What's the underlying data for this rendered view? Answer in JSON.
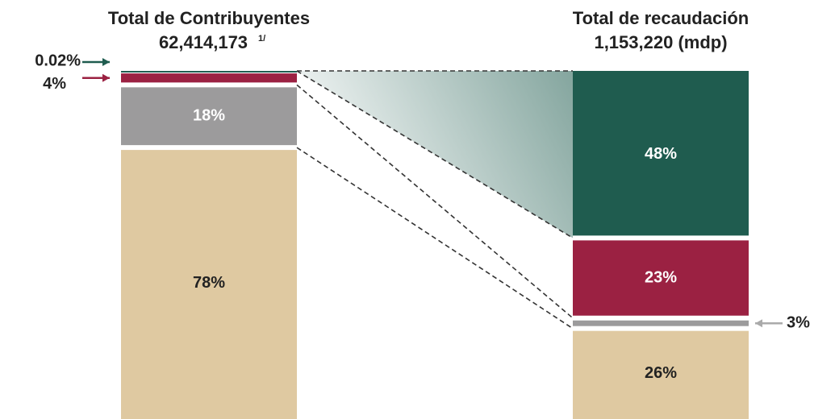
{
  "chart_data": {
    "type": "stacked_bar",
    "categories": [
      "Total de Contribuyentes",
      "Total de recaudación"
    ],
    "category_totals": [
      "62,414,173",
      "1,153,220 (mdp)"
    ],
    "footnote_mark": "1/",
    "series": [
      {
        "name": null,
        "color": "#1f5c4f",
        "values": [
          0.02,
          48
        ],
        "value_labels": [
          "0.02%",
          "48%"
        ]
      },
      {
        "name": null,
        "color": "#9b2142",
        "values": [
          4,
          23
        ],
        "value_labels": [
          "4%",
          "23%"
        ]
      },
      {
        "name": null,
        "color": "#9c9b9c",
        "values": [
          18,
          3
        ],
        "value_labels": [
          "18%",
          "3%"
        ]
      },
      {
        "name": null,
        "color": "#dfc9a1",
        "values": [
          78,
          26
        ],
        "value_labels": [
          "78%",
          "26%"
        ]
      }
    ]
  }
}
